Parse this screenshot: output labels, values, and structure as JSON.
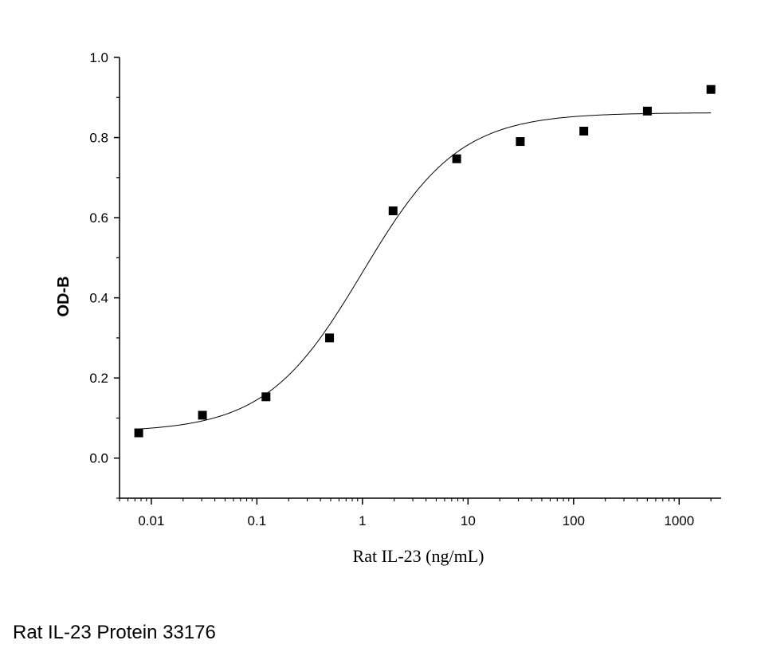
{
  "caption": "Rat IL-23 Protein 33176",
  "chart_data": {
    "type": "scatter",
    "title": "",
    "xlabel": "Rat IL-23 (ng/mL)",
    "ylabel": "OD-B",
    "xscale": "log",
    "xlim": [
      0.005,
      2500
    ],
    "ylim": [
      -0.1,
      1.0
    ],
    "xticks": [
      {
        "value": 0.01,
        "label": "0.01"
      },
      {
        "value": 0.1,
        "label": "0.1"
      },
      {
        "value": 1,
        "label": "1"
      },
      {
        "value": 10,
        "label": "10"
      },
      {
        "value": 100,
        "label": "100"
      },
      {
        "value": 1000,
        "label": "1000"
      }
    ],
    "yticks": [
      {
        "value": 0.0,
        "label": "0.0"
      },
      {
        "value": 0.2,
        "label": "0.2"
      },
      {
        "value": 0.4,
        "label": "0.4"
      },
      {
        "value": 0.6,
        "label": "0.6"
      },
      {
        "value": 0.8,
        "label": "0.8"
      },
      {
        "value": 1.0,
        "label": "1.0"
      }
    ],
    "grid": false,
    "legend": "none",
    "series": [
      {
        "marker": "square",
        "color": "#000000",
        "x": [
          0.0076,
          0.0305,
          0.122,
          0.488,
          1.95,
          7.81,
          31.25,
          125,
          500,
          2000
        ],
        "y": [
          0.063,
          0.107,
          0.153,
          0.3,
          0.617,
          0.747,
          0.79,
          0.816,
          0.866,
          0.92
        ]
      }
    ],
    "fit": {
      "model": "4PL",
      "color": "#000000",
      "bottom": 0.065,
      "top": 0.862,
      "ec50": 1.0,
      "hill": 0.95
    }
  }
}
